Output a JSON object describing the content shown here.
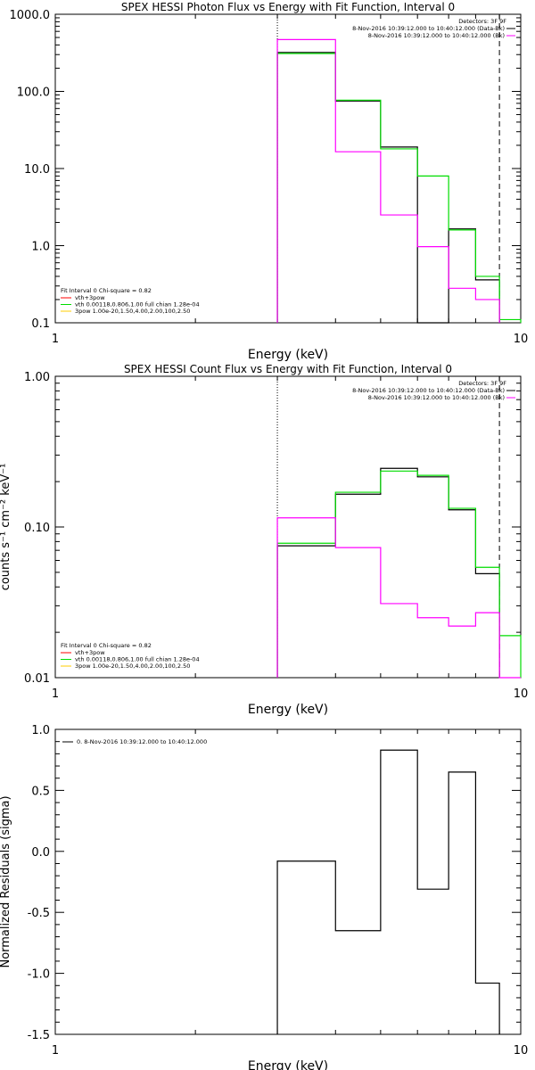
{
  "chart_data": [
    {
      "type": "line",
      "title": "SPEX HESSI Photon Flux vs Energy with Fit Function, Interval 0",
      "xlabel": "Energy (keV)",
      "ylabel": "",
      "xscale": "log",
      "yscale": "log",
      "xlim": [
        1,
        10
      ],
      "ylim": [
        0.1,
        1000
      ],
      "x_ticks": [
        "1",
        "10"
      ],
      "y_ticks": [
        "0.1",
        "1.0",
        "10.0",
        "100.0",
        "1000.0"
      ],
      "x_tick_values": [
        1,
        10
      ],
      "y_tick_values": [
        0.1,
        1,
        10,
        100,
        1000
      ],
      "markers_x": [
        3.0,
        9.0
      ],
      "legend_top": {
        "placement": "top-right",
        "title": "Detectors: 3F 9F",
        "entries": [
          {
            "text": "8-Nov-2016 10:39:12.000 to 10:40:12.000 (Data-Bk)",
            "color": "#000000"
          },
          {
            "text": "8-Nov-2016 10:39:12.000 to 10:40:12.000 (Bk)",
            "color": "#ff00ff"
          }
        ]
      },
      "legend_bottom": {
        "placement": "bottom-left",
        "title": "Fit Interval 0   Chi-square = 0.82",
        "entries": [
          {
            "text": "vth+3pow",
            "color": "#ff0000"
          },
          {
            "text": "vth 0.00118,0.806,1.00  full chian 1.28e-04",
            "color": "#00dd00"
          },
          {
            "text": "3pow 1.00e-20,1.50,4.00,2.00,100,2.50",
            "color": "#ffcc00"
          }
        ]
      },
      "bin_edges": [
        3.0,
        4.0,
        5.0,
        6.0,
        7.0,
        8.0,
        9.0,
        10.0
      ],
      "series": [
        {
          "values": [
            320,
            75,
            19,
            0,
            1.65,
            0.36
          ],
          "color": "#000000"
        },
        {
          "values": [
            310,
            77,
            18,
            8,
            1.6,
            0.4,
            0.11
          ],
          "color": "#00dd00"
        },
        {
          "values": [
            470,
            16.5,
            2.5,
            0.97,
            0.28,
            0.2
          ],
          "color": "#ff00ff"
        }
      ]
    },
    {
      "type": "line",
      "title": "SPEX HESSI Count Flux vs Energy with Fit Function, Interval 0",
      "xlabel": "Energy (keV)",
      "ylabel": "counts s⁻¹ cm⁻² keV⁻¹",
      "xscale": "log",
      "yscale": "log",
      "xlim": [
        1,
        10
      ],
      "ylim": [
        0.01,
        1.0
      ],
      "x_ticks": [
        "1",
        "10"
      ],
      "y_ticks": [
        "0.01",
        "0.10",
        "1.00"
      ],
      "x_tick_values": [
        1,
        10
      ],
      "y_tick_values": [
        0.01,
        0.1,
        1.0
      ],
      "markers_x": [
        3.0,
        9.0
      ],
      "legend_top": {
        "placement": "top-right",
        "title": "Detectors: 3F 9F",
        "entries": [
          {
            "text": "8-Nov-2016 10:39:12.000 to 10:40:12.000 (Data-Bk)",
            "color": "#000000"
          },
          {
            "text": "8-Nov-2016 10:39:12.000 to 10:40:12.000 (Bk)",
            "color": "#ff00ff"
          }
        ]
      },
      "legend_bottom": {
        "placement": "bottom-left",
        "title": "Fit Interval 0   Chi-square = 0.82",
        "entries": [
          {
            "text": "vth+3pow",
            "color": "#ff0000"
          },
          {
            "text": "vth 0.00118,0.806,1.00  full chian 1.28e-04",
            "color": "#00dd00"
          },
          {
            "text": "3pow 1.00e-20,1.50,4.00,2.00,100,2.50",
            "color": "#ffcc00"
          }
        ]
      },
      "bin_edges": [
        3.0,
        4.0,
        5.0,
        6.0,
        7.0,
        8.0,
        9.0,
        10.0
      ],
      "series": [
        {
          "values": [
            0.075,
            0.165,
            0.245,
            0.215,
            0.13,
            0.049
          ],
          "color": "#000000"
        },
        {
          "values": [
            0.078,
            0.17,
            0.235,
            0.22,
            0.133,
            0.054,
            0.019
          ],
          "color": "#00dd00"
        },
        {
          "values": [
            0.115,
            0.073,
            0.031,
            0.025,
            0.022,
            0.027,
            0.01
          ],
          "color": "#ff00ff"
        }
      ]
    },
    {
      "type": "line",
      "title": "",
      "xlabel": "Energy (keV)",
      "ylabel": "Normalized Residuals (sigma)",
      "xscale": "log",
      "yscale": "linear",
      "xlim": [
        1,
        10
      ],
      "ylim": [
        -1.5,
        1.0
      ],
      "x_ticks": [
        "1",
        "10"
      ],
      "y_ticks": [
        "-1.5",
        "-1.0",
        "-0.5",
        "0.0",
        "0.5",
        "1.0"
      ],
      "x_tick_values": [
        1,
        10
      ],
      "y_tick_values": [
        -1.5,
        -1.0,
        -0.5,
        0.0,
        0.5,
        1.0
      ],
      "legend_top": {
        "placement": "top-left",
        "entries": [
          {
            "text": "0. 8-Nov-2016 10:39:12.000 to 10:40:12.000",
            "color": "#000000"
          }
        ]
      },
      "bin_edges": [
        3.0,
        4.0,
        5.0,
        6.0,
        7.0,
        8.0,
        9.0
      ],
      "series": [
        {
          "values": [
            -0.08,
            -0.65,
            0.83,
            -0.31,
            0.65,
            -1.08
          ],
          "color": "#000000"
        }
      ]
    }
  ]
}
